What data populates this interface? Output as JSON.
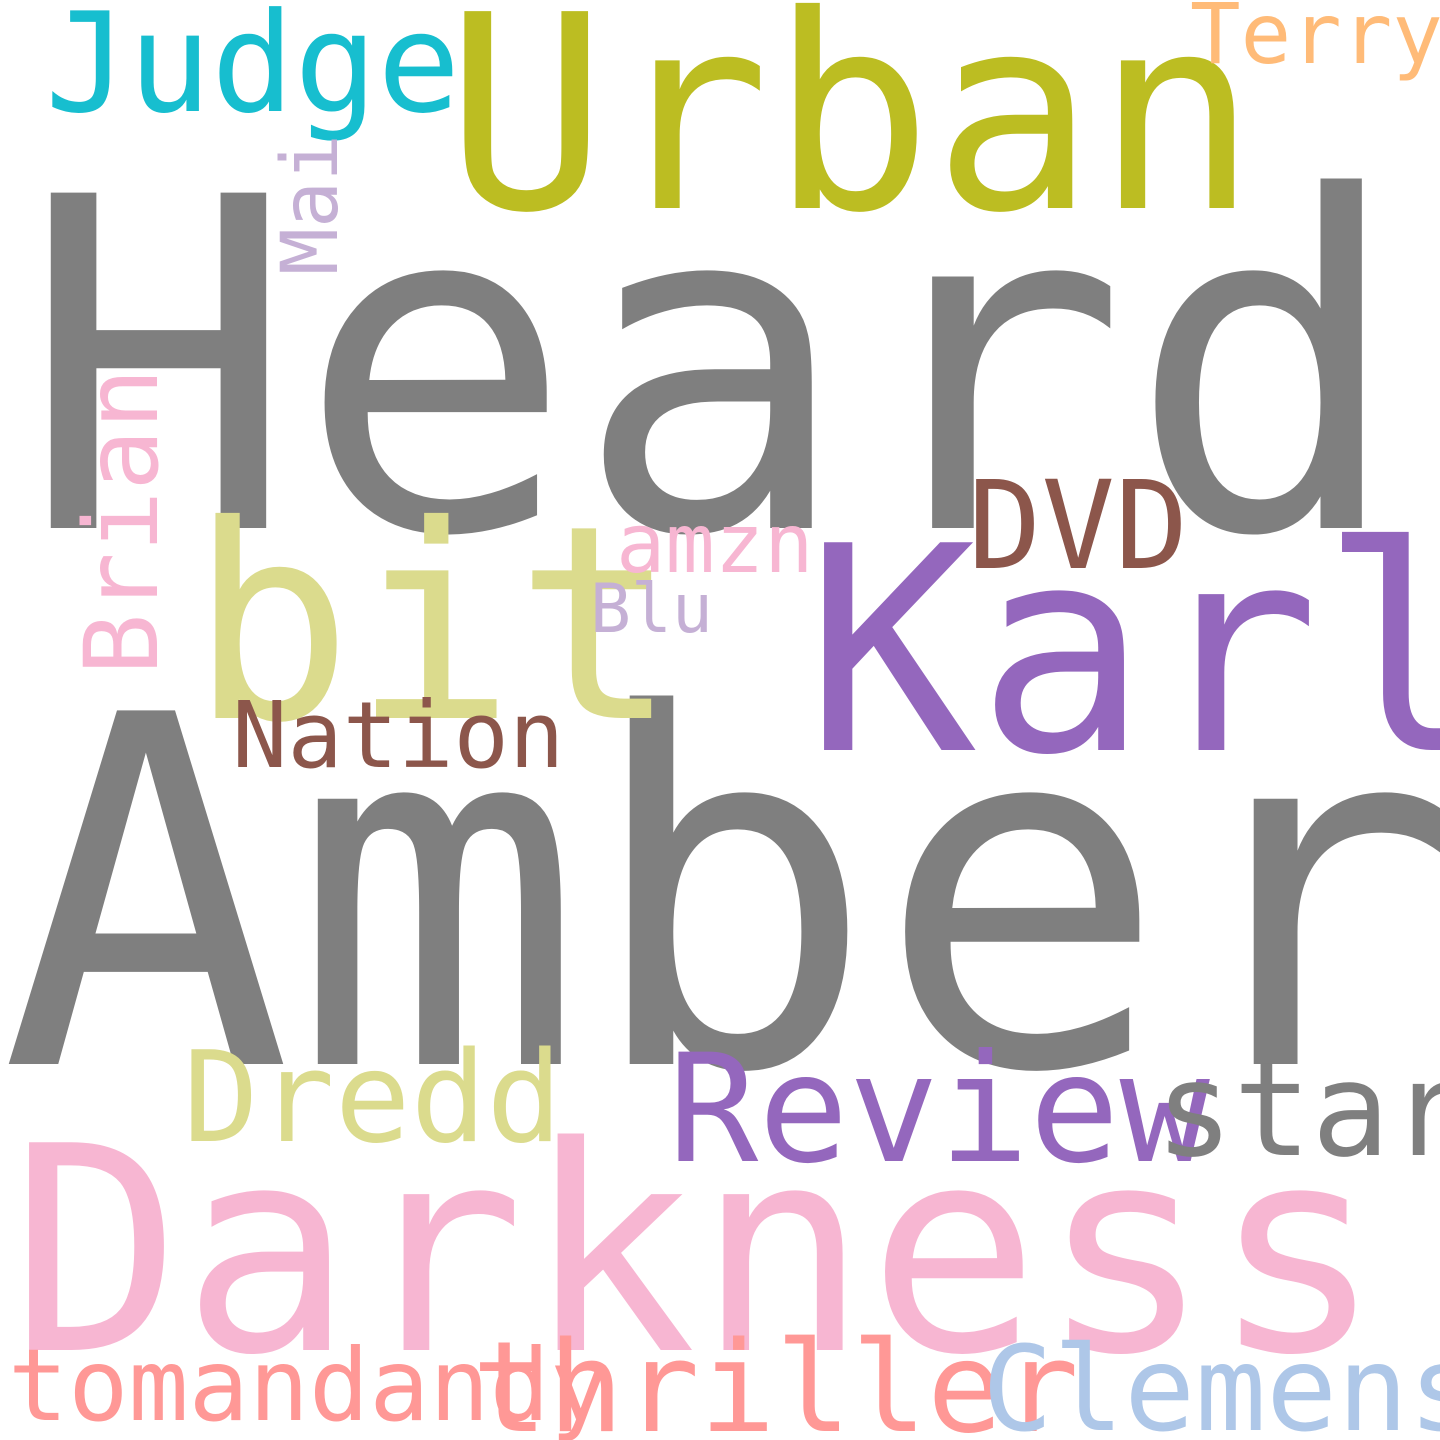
{
  "words": {
    "heard": {
      "text": "Heard",
      "color": "#7f7f7f"
    },
    "amber": {
      "text": "Amber",
      "color": "#7f7f7f"
    },
    "darkness": {
      "text": "Darkness",
      "color": "#f7b6d2"
    },
    "urban": {
      "text": "Urban",
      "color": "#bcbd22"
    },
    "karl": {
      "text": "Karl",
      "color": "#9467bd"
    },
    "bit": {
      "text": "bit",
      "color": "#dbdb8d"
    },
    "judge": {
      "text": "Judge",
      "color": "#17becf"
    },
    "terry": {
      "text": "Terry",
      "color": "#ffbb78"
    },
    "mai": {
      "text": "Mai",
      "color": "#c5b0d5"
    },
    "brian": {
      "text": "Brian",
      "color": "#f7b6d2"
    },
    "dvd": {
      "text": "DVD",
      "color": "#8c564b"
    },
    "amzn": {
      "text": "amzn",
      "color": "#f7b6d2"
    },
    "blu": {
      "text": "Blu",
      "color": "#c5b0d5"
    },
    "nation": {
      "text": "Nation",
      "color": "#8c564b"
    },
    "dredd": {
      "text": "Dredd",
      "color": "#dbdb8d"
    },
    "review": {
      "text": "Review",
      "color": "#9467bd"
    },
    "star": {
      "text": "star",
      "color": "#7f7f7f"
    },
    "tomandandy": {
      "text": "tomandandy",
      "color": "#ff9896"
    },
    "thriller": {
      "text": "thriller",
      "color": "#ff9896"
    },
    "clemens": {
      "text": "Clemens",
      "color": "#aec7e8"
    }
  }
}
